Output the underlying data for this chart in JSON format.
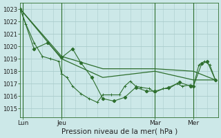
{
  "bg_color": "#cce8e8",
  "grid_color": "#aacccc",
  "line_color": "#2d6e2d",
  "xlabel": "Pression niveau de la mer( hPa )",
  "xlabel_fontsize": 7.5,
  "yticks": [
    1015,
    1016,
    1017,
    1018,
    1019,
    1020,
    1021,
    1022,
    1023
  ],
  "ylim": [
    1014.3,
    1023.5
  ],
  "xlim": [
    0,
    72
  ],
  "xtick_labels": [
    "Lun",
    "Jeu",
    "Mar",
    "Mer"
  ],
  "xtick_positions": [
    1,
    15,
    49,
    63
  ],
  "vline_positions": [
    1,
    15,
    49,
    63
  ],
  "s1_x": [
    0,
    2,
    5,
    8,
    11,
    14,
    15,
    17,
    19,
    22,
    25,
    28,
    30,
    33,
    36,
    38,
    40,
    42,
    44,
    47,
    49,
    52,
    54,
    57,
    59,
    62,
    63,
    65,
    67,
    69,
    71
  ],
  "s1_y": [
    1023.0,
    1021.8,
    1020.3,
    1019.2,
    1019.0,
    1018.8,
    1017.8,
    1017.5,
    1016.8,
    1016.2,
    1015.8,
    1015.5,
    1016.1,
    1016.1,
    1016.1,
    1016.8,
    1017.2,
    1016.8,
    1016.7,
    1016.6,
    1016.3,
    1016.6,
    1016.6,
    1017.0,
    1016.8,
    1016.9,
    1016.8,
    1018.5,
    1018.8,
    1018.5,
    1017.3
  ],
  "s2_x": [
    0,
    5,
    10,
    15,
    19,
    22,
    26,
    30,
    34,
    38,
    42,
    46,
    49,
    54,
    58,
    62,
    63,
    66,
    68,
    71
  ],
  "s2_y": [
    1023.0,
    1019.8,
    1020.3,
    1019.1,
    1019.8,
    1018.7,
    1017.5,
    1015.8,
    1015.6,
    1015.9,
    1016.7,
    1016.4,
    1016.4,
    1016.7,
    1017.1,
    1016.8,
    1016.8,
    1018.6,
    1018.8,
    1017.3
  ],
  "s3_x": [
    0,
    15,
    30,
    49,
    63,
    71
  ],
  "s3_y": [
    1023.0,
    1019.2,
    1018.2,
    1018.2,
    1018.0,
    1017.3
  ],
  "s4_x": [
    0,
    15,
    30,
    49,
    63,
    71
  ],
  "s4_y": [
    1023.0,
    1019.0,
    1017.5,
    1018.0,
    1017.3,
    1017.3
  ]
}
